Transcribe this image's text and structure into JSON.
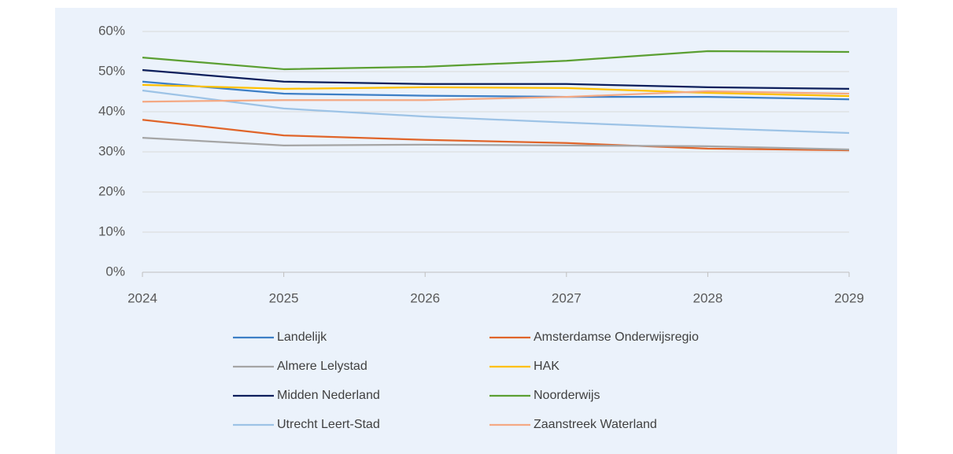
{
  "chart_data": {
    "type": "line",
    "categories": [
      "2024",
      "2025",
      "2026",
      "2027",
      "2028",
      "2029"
    ],
    "series": [
      {
        "name": "Landelijk",
        "color": "#3d7fc6",
        "values": [
          47.5,
          44.5,
          44.0,
          43.7,
          43.7,
          43.1
        ]
      },
      {
        "name": "Amsterdamse Onderwijsregio",
        "color": "#e0652a",
        "values": [
          38.0,
          34.1,
          33.0,
          32.2,
          30.8,
          30.4
        ]
      },
      {
        "name": "Almere Lelystad",
        "color": "#a5a5a5",
        "values": [
          33.5,
          31.6,
          31.8,
          31.6,
          31.4,
          30.6
        ]
      },
      {
        "name": "HAK",
        "color": "#ffc000",
        "values": [
          46.7,
          45.7,
          46.1,
          45.9,
          44.7,
          43.9
        ]
      },
      {
        "name": "Midden Nederland",
        "color": "#0d1f5c",
        "values": [
          50.4,
          47.5,
          46.9,
          46.9,
          46.1,
          45.7
        ]
      },
      {
        "name": "Noorderwijs",
        "color": "#5b9f32",
        "values": [
          53.5,
          50.6,
          51.2,
          52.7,
          55.1,
          54.9
        ]
      },
      {
        "name": "Utrecht Leert-Stad",
        "color": "#9dc3e6",
        "values": [
          45.3,
          40.8,
          38.8,
          37.3,
          35.9,
          34.7
        ]
      },
      {
        "name": "Zaanstreek Waterland",
        "color": "#f4a984",
        "values": [
          42.5,
          42.9,
          42.9,
          43.7,
          45.1,
          44.5
        ]
      }
    ],
    "ylim": [
      0,
      60
    ],
    "yticks": [
      {
        "value": 0,
        "label": "0%"
      },
      {
        "value": 10,
        "label": "10%"
      },
      {
        "value": 20,
        "label": "20%"
      },
      {
        "value": 30,
        "label": "30%"
      },
      {
        "value": 40,
        "label": "40%"
      },
      {
        "value": 50,
        "label": "50%"
      },
      {
        "value": 60,
        "label": "60%"
      }
    ],
    "grid": true,
    "legend": "bottom"
  }
}
